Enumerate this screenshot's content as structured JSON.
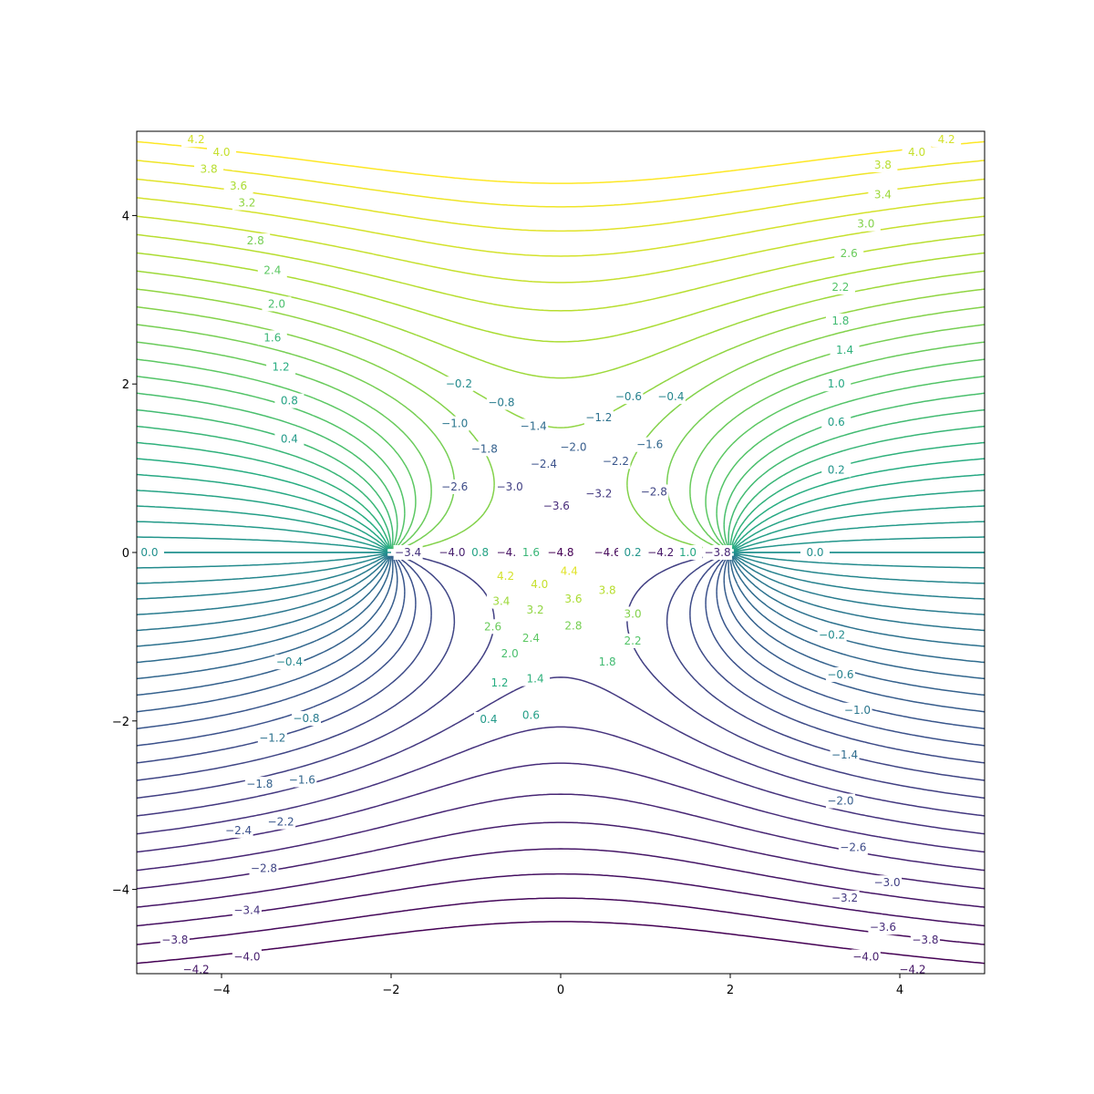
{
  "chart_data": {
    "type": "contour",
    "field": "potential of two line charges: phi(x,y) = atan2(y, x-2) - atan2(y, x+2) + 0.9*y",
    "title": "",
    "xlabel": "",
    "ylabel": "",
    "xlim": [
      -5,
      5
    ],
    "ylim": [
      -5,
      5
    ],
    "grid": false,
    "legend": "none",
    "colormap": "viridis",
    "level_range": [
      -4.8,
      4.8
    ],
    "level_step": 0.2,
    "x_ticks": [
      -4,
      -2,
      0,
      2,
      4
    ],
    "y_ticks": [
      -4,
      -2,
      0,
      2,
      4
    ],
    "x_tick_labels": [
      "−4",
      "−2",
      "0",
      "2",
      "4"
    ],
    "y_tick_labels": [
      "−4",
      "−2",
      "0",
      "2",
      "4"
    ],
    "contour_labels": [
      {
        "x": -4.3,
        "y": 4.9,
        "text": "4.2"
      },
      {
        "x": -4.0,
        "y": 4.75,
        "text": "4.0"
      },
      {
        "x": -4.15,
        "y": 4.55,
        "text": "3.8"
      },
      {
        "x": -3.8,
        "y": 4.35,
        "text": "3.6"
      },
      {
        "x": -3.7,
        "y": 4.15,
        "text": "3.2"
      },
      {
        "x": -3.6,
        "y": 3.7,
        "text": "2.8"
      },
      {
        "x": -3.4,
        "y": 3.35,
        "text": "2.4"
      },
      {
        "x": -3.35,
        "y": 2.95,
        "text": "2.0"
      },
      {
        "x": -3.4,
        "y": 2.55,
        "text": "1.6"
      },
      {
        "x": -3.3,
        "y": 2.2,
        "text": "1.2"
      },
      {
        "x": -3.2,
        "y": 1.8,
        "text": "0.8"
      },
      {
        "x": -3.2,
        "y": 1.35,
        "text": "0.4"
      },
      {
        "x": 4.55,
        "y": 4.9,
        "text": "4.2"
      },
      {
        "x": 4.2,
        "y": 4.75,
        "text": "4.0"
      },
      {
        "x": 3.8,
        "y": 4.6,
        "text": "3.8"
      },
      {
        "x": 3.8,
        "y": 4.25,
        "text": "3.4"
      },
      {
        "x": 3.6,
        "y": 3.9,
        "text": "3.0"
      },
      {
        "x": 3.4,
        "y": 3.55,
        "text": "2.6"
      },
      {
        "x": 3.3,
        "y": 3.15,
        "text": "2.2"
      },
      {
        "x": 3.3,
        "y": 2.75,
        "text": "1.8"
      },
      {
        "x": 3.35,
        "y": 2.4,
        "text": "1.4"
      },
      {
        "x": 3.25,
        "y": 2.0,
        "text": "1.0"
      },
      {
        "x": 3.25,
        "y": 1.55,
        "text": "0.6"
      },
      {
        "x": 3.25,
        "y": 0.98,
        "text": "0.2"
      },
      {
        "x": -1.2,
        "y": 2.0,
        "text": "−0.2"
      },
      {
        "x": -0.7,
        "y": 1.78,
        "text": "−0.8"
      },
      {
        "x": 0.8,
        "y": 1.85,
        "text": "−0.6"
      },
      {
        "x": 1.3,
        "y": 1.85,
        "text": "−0.4"
      },
      {
        "x": -1.25,
        "y": 1.53,
        "text": "−1.0"
      },
      {
        "x": -0.32,
        "y": 1.5,
        "text": "−1.4"
      },
      {
        "x": 0.45,
        "y": 1.6,
        "text": "−1.2"
      },
      {
        "x": 1.05,
        "y": 1.28,
        "text": "−1.6"
      },
      {
        "x": -0.9,
        "y": 1.23,
        "text": "−1.8"
      },
      {
        "x": 0.15,
        "y": 1.25,
        "text": "−2.0"
      },
      {
        "x": -0.2,
        "y": 1.05,
        "text": "−2.4"
      },
      {
        "x": 0.65,
        "y": 1.08,
        "text": "−2.2"
      },
      {
        "x": -1.25,
        "y": 0.78,
        "text": "−2.6"
      },
      {
        "x": -0.6,
        "y": 0.78,
        "text": "−3.0"
      },
      {
        "x": 0.45,
        "y": 0.7,
        "text": "−3.2"
      },
      {
        "x": 1.1,
        "y": 0.72,
        "text": "−2.8"
      },
      {
        "x": -0.05,
        "y": 0.55,
        "text": "−3.6"
      },
      {
        "x": -1.8,
        "y": 0.0,
        "text": "−3.4"
      },
      {
        "x": -1.28,
        "y": 0.0,
        "text": "−4.0"
      },
      {
        "x": -0.95,
        "y": 0.0,
        "text": "0.8"
      },
      {
        "x": -0.6,
        "y": 0.0,
        "text": "−4.4"
      },
      {
        "x": -0.35,
        "y": 0.0,
        "text": "1.6"
      },
      {
        "x": 0.0,
        "y": 0.0,
        "text": "−4.8"
      },
      {
        "x": 0.55,
        "y": 0.0,
        "text": "−4.6"
      },
      {
        "x": 0.85,
        "y": 0.0,
        "text": "0.2"
      },
      {
        "x": 1.18,
        "y": 0.0,
        "text": "−4.2"
      },
      {
        "x": 1.5,
        "y": 0.0,
        "text": "1.0"
      },
      {
        "x": 1.85,
        "y": 0.0,
        "text": "−3.8"
      },
      {
        "x": -4.85,
        "y": 0.0,
        "text": "0.0"
      },
      {
        "x": 3.0,
        "y": 0.0,
        "text": "0.0"
      },
      {
        "x": -0.65,
        "y": -0.28,
        "text": "4.2"
      },
      {
        "x": 0.1,
        "y": -0.22,
        "text": "4.4"
      },
      {
        "x": -0.25,
        "y": -0.38,
        "text": "4.0"
      },
      {
        "x": 0.55,
        "y": -0.45,
        "text": "3.8"
      },
      {
        "x": -0.7,
        "y": -0.58,
        "text": "3.4"
      },
      {
        "x": -0.3,
        "y": -0.68,
        "text": "3.2"
      },
      {
        "x": 0.15,
        "y": -0.55,
        "text": "3.6"
      },
      {
        "x": 0.85,
        "y": -0.73,
        "text": "3.0"
      },
      {
        "x": -0.8,
        "y": -0.88,
        "text": "2.6"
      },
      {
        "x": -0.35,
        "y": -1.02,
        "text": "2.4"
      },
      {
        "x": 0.15,
        "y": -0.87,
        "text": "2.8"
      },
      {
        "x": 0.85,
        "y": -1.05,
        "text": "2.2"
      },
      {
        "x": -0.6,
        "y": -1.2,
        "text": "2.0"
      },
      {
        "x": 0.55,
        "y": -1.3,
        "text": "1.8"
      },
      {
        "x": -0.72,
        "y": -1.55,
        "text": "1.2"
      },
      {
        "x": -0.3,
        "y": -1.5,
        "text": "1.4"
      },
      {
        "x": -0.85,
        "y": -1.98,
        "text": "0.4"
      },
      {
        "x": -0.35,
        "y": -1.93,
        "text": "0.6"
      },
      {
        "x": -3.2,
        "y": -1.3,
        "text": "−0.4"
      },
      {
        "x": -3.0,
        "y": -1.97,
        "text": "−0.8"
      },
      {
        "x": -3.4,
        "y": -2.2,
        "text": "−1.2"
      },
      {
        "x": -3.05,
        "y": -2.7,
        "text": "−1.6"
      },
      {
        "x": -3.55,
        "y": -2.75,
        "text": "−1.8"
      },
      {
        "x": -3.3,
        "y": -3.2,
        "text": "−2.2"
      },
      {
        "x": -3.8,
        "y": -3.3,
        "text": "−2.4"
      },
      {
        "x": -3.5,
        "y": -3.75,
        "text": "−2.8"
      },
      {
        "x": -3.7,
        "y": -4.25,
        "text": "−3.4"
      },
      {
        "x": -4.55,
        "y": -4.6,
        "text": "−3.8"
      },
      {
        "x": -3.7,
        "y": -4.8,
        "text": "−4.0"
      },
      {
        "x": -4.3,
        "y": -4.95,
        "text": "−4.2"
      },
      {
        "x": 3.2,
        "y": -0.98,
        "text": "−0.2"
      },
      {
        "x": 3.3,
        "y": -1.45,
        "text": "−0.6"
      },
      {
        "x": 3.5,
        "y": -1.87,
        "text": "−1.0"
      },
      {
        "x": 3.35,
        "y": -2.4,
        "text": "−1.4"
      },
      {
        "x": 3.3,
        "y": -2.95,
        "text": "−2.0"
      },
      {
        "x": 3.45,
        "y": -3.5,
        "text": "−2.6"
      },
      {
        "x": 3.85,
        "y": -3.92,
        "text": "−3.0"
      },
      {
        "x": 3.35,
        "y": -4.1,
        "text": "−3.2"
      },
      {
        "x": 3.8,
        "y": -4.45,
        "text": "−3.6"
      },
      {
        "x": 4.3,
        "y": -4.6,
        "text": "−3.8"
      },
      {
        "x": 3.6,
        "y": -4.8,
        "text": "−4.0"
      },
      {
        "x": 4.15,
        "y": -4.95,
        "text": "−4.2"
      }
    ]
  }
}
